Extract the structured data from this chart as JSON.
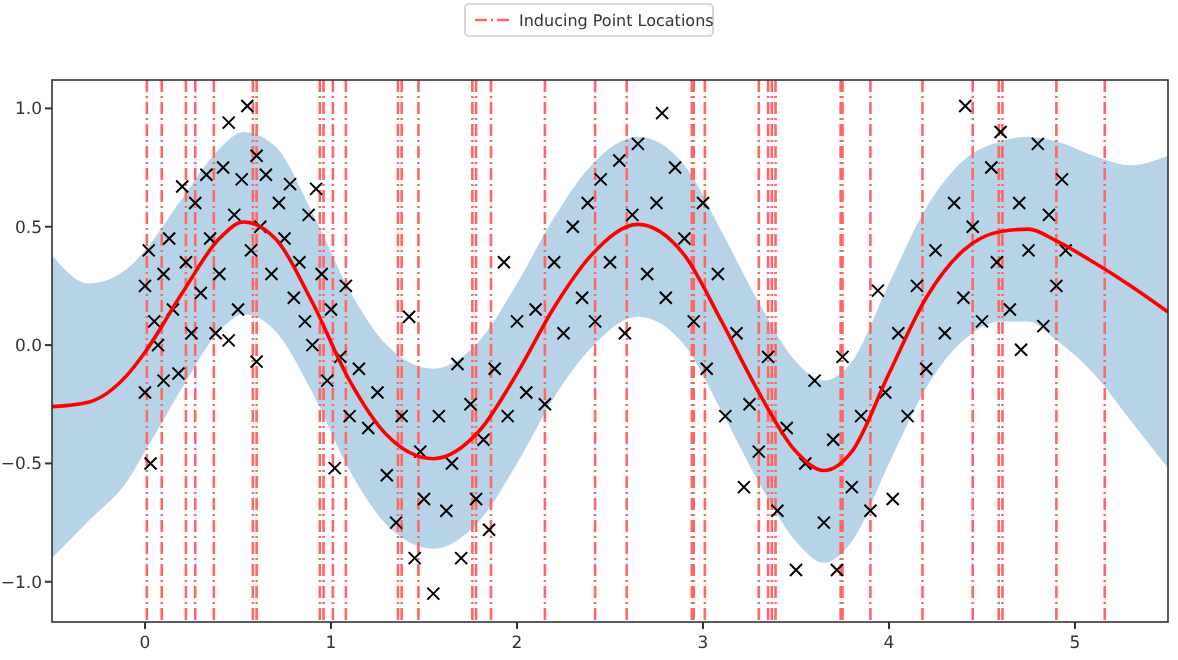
{
  "chart_data": {
    "type": "scatter",
    "xlim": [
      -0.5,
      5.5
    ],
    "ylim": [
      -1.17,
      1.12
    ],
    "xticks": [
      0,
      1,
      2,
      3,
      4,
      5
    ],
    "yticks": [
      {
        "value": -1,
        "label": "−1.0"
      },
      {
        "value": -0.5,
        "label": "−0.5"
      },
      {
        "value": 0,
        "label": "0.0"
      },
      {
        "value": 0.5,
        "label": "0.5"
      },
      {
        "value": 1,
        "label": "1.0"
      }
    ],
    "legend": "top",
    "series": [
      {
        "color": "#000000",
        "marker": "cross",
        "x": [
          0.0,
          0.0,
          0.02,
          0.03,
          0.05,
          0.07,
          0.1,
          0.1,
          0.13,
          0.15,
          0.18,
          0.2,
          0.22,
          0.25,
          0.27,
          0.3,
          0.33,
          0.35,
          0.38,
          0.4,
          0.42,
          0.45,
          0.45,
          0.48,
          0.5,
          0.52,
          0.55,
          0.57,
          0.6,
          0.6,
          0.62,
          0.65,
          0.68,
          0.72,
          0.75,
          0.78,
          0.8,
          0.83,
          0.86,
          0.88,
          0.9,
          0.92,
          0.95,
          0.98,
          1.0,
          1.02,
          1.05,
          1.08,
          1.1,
          1.15,
          1.2,
          1.25,
          1.3,
          1.35,
          1.38,
          1.42,
          1.45,
          1.48,
          1.5,
          1.55,
          1.58,
          1.62,
          1.65,
          1.68,
          1.7,
          1.75,
          1.78,
          1.82,
          1.85,
          1.88,
          1.93,
          1.95,
          2.0,
          2.05,
          2.1,
          2.15,
          2.2,
          2.25,
          2.3,
          2.35,
          2.38,
          2.42,
          2.45,
          2.5,
          2.55,
          2.58,
          2.62,
          2.65,
          2.7,
          2.75,
          2.78,
          2.8,
          2.85,
          2.9,
          2.95,
          3.0,
          3.02,
          3.08,
          3.12,
          3.18,
          3.22,
          3.25,
          3.3,
          3.35,
          3.4,
          3.45,
          3.5,
          3.55,
          3.6,
          3.65,
          3.7,
          3.72,
          3.75,
          3.8,
          3.85,
          3.9,
          3.94,
          3.98,
          4.02,
          4.05,
          4.1,
          4.15,
          4.2,
          4.25,
          4.3,
          4.35,
          4.4,
          4.41,
          4.45,
          4.5,
          4.55,
          4.58,
          4.6,
          4.65,
          4.7,
          4.71,
          4.75,
          4.8,
          4.83,
          4.86,
          4.9,
          4.93,
          4.95
        ],
        "values": [
          0.25,
          -0.2,
          0.4,
          -0.5,
          0.1,
          0.0,
          0.3,
          -0.15,
          0.45,
          0.15,
          -0.12,
          0.67,
          0.35,
          0.05,
          0.6,
          0.22,
          0.72,
          0.45,
          0.05,
          0.3,
          0.75,
          0.94,
          0.02,
          0.55,
          0.15,
          0.7,
          1.01,
          0.4,
          0.8,
          -0.07,
          0.5,
          0.72,
          0.3,
          0.6,
          0.45,
          0.68,
          0.2,
          0.35,
          0.1,
          0.55,
          0.0,
          0.66,
          0.3,
          -0.15,
          0.15,
          -0.52,
          -0.05,
          0.25,
          -0.3,
          -0.1,
          -0.35,
          -0.2,
          -0.55,
          -0.75,
          -0.3,
          0.12,
          -0.9,
          -0.45,
          -0.65,
          -1.05,
          -0.3,
          -0.7,
          -0.5,
          -0.08,
          -0.9,
          -0.25,
          -0.65,
          -0.4,
          -0.78,
          -0.1,
          0.35,
          -0.3,
          0.1,
          -0.2,
          0.15,
          -0.25,
          0.35,
          0.05,
          0.5,
          0.2,
          0.6,
          0.1,
          0.7,
          0.35,
          0.78,
          0.05,
          0.55,
          0.85,
          0.3,
          0.6,
          0.98,
          0.2,
          0.75,
          0.45,
          0.1,
          0.6,
          -0.1,
          0.3,
          -0.3,
          0.05,
          -0.6,
          -0.25,
          -0.45,
          -0.05,
          -0.7,
          -0.35,
          -0.95,
          -0.5,
          -0.15,
          -0.75,
          -0.4,
          -0.95,
          -0.05,
          -0.6,
          -0.3,
          -0.7,
          0.23,
          -0.2,
          -0.65,
          0.05,
          -0.3,
          0.25,
          -0.1,
          0.4,
          0.05,
          0.6,
          0.2,
          1.01,
          0.5,
          0.1,
          0.75,
          0.35,
          0.9,
          0.15,
          0.6,
          -0.02,
          0.4,
          0.85,
          0.08,
          0.55,
          0.25,
          0.7,
          0.4
        ]
      },
      {
        "type": "line",
        "color": "#ff0000",
        "marker": "none",
        "line_style": "solid",
        "x": [
          -0.5,
          -0.3,
          -0.1,
          0,
          0.2,
          0.4,
          0.53,
          0.7,
          0.9,
          1.1,
          1.3,
          1.55,
          1.8,
          2.0,
          2.2,
          2.4,
          2.65,
          2.9,
          3.1,
          3.3,
          3.5,
          3.65,
          3.8,
          4.0,
          4.2,
          4.4,
          4.6,
          4.75,
          4.9,
          5.1,
          5.3,
          5.5
        ],
        "values": [
          -0.26,
          -0.24,
          -0.13,
          -0.03,
          0.22,
          0.45,
          0.52,
          0.45,
          0.18,
          -0.15,
          -0.38,
          -0.48,
          -0.36,
          -0.12,
          0.16,
          0.38,
          0.51,
          0.38,
          0.1,
          -0.2,
          -0.45,
          -0.53,
          -0.45,
          -0.12,
          0.2,
          0.4,
          0.48,
          0.49,
          0.44,
          0.35,
          0.25,
          0.14
        ],
        "upper": [
          0.38,
          0.26,
          0.32,
          0.4,
          0.62,
          0.83,
          0.9,
          0.84,
          0.56,
          0.23,
          0,
          -0.1,
          0.02,
          0.26,
          0.54,
          0.76,
          0.88,
          0.76,
          0.48,
          0.18,
          -0.07,
          -0.15,
          -0.07,
          0.26,
          0.58,
          0.78,
          0.86,
          0.88,
          0.86,
          0.8,
          0.76,
          0.8
        ],
        "lower": [
          -0.9,
          -0.74,
          -0.58,
          -0.45,
          -0.18,
          0.06,
          0.13,
          0.06,
          -0.2,
          -0.53,
          -0.76,
          -0.86,
          -0.74,
          -0.5,
          -0.22,
          -0.01,
          0.12,
          0.0,
          -0.28,
          -0.58,
          -0.83,
          -0.92,
          -0.83,
          -0.5,
          -0.18,
          0.02,
          0.1,
          0.1,
          0.02,
          -0.12,
          -0.32,
          -0.52
        ]
      }
    ],
    "ref_lines": [
      {
        "axis": "x",
        "value": 0.01,
        "label": "Inducing Point Locations",
        "color": "#ff6666",
        "line_style": "dashed"
      },
      {
        "axis": "x",
        "value": 0.09,
        "color": "#ff6666",
        "line_style": "dashed"
      },
      {
        "axis": "x",
        "value": 0.22,
        "color": "#ff6666",
        "line_style": "dashed"
      },
      {
        "axis": "x",
        "value": 0.27,
        "color": "#ff6666",
        "line_style": "dashed"
      },
      {
        "axis": "x",
        "value": 0.37,
        "color": "#ff6666",
        "line_style": "dashed"
      },
      {
        "axis": "x",
        "value": 0.58,
        "color": "#ff6666",
        "line_style": "dashed"
      },
      {
        "axis": "x",
        "value": 0.6,
        "color": "#ff6666",
        "line_style": "dashed"
      },
      {
        "axis": "x",
        "value": 0.94,
        "color": "#ff6666",
        "line_style": "dashed"
      },
      {
        "axis": "x",
        "value": 0.96,
        "color": "#ff6666",
        "line_style": "dashed"
      },
      {
        "axis": "x",
        "value": 1.01,
        "color": "#ff6666",
        "line_style": "dashed"
      },
      {
        "axis": "x",
        "value": 1.08,
        "color": "#ff6666",
        "line_style": "dashed"
      },
      {
        "axis": "x",
        "value": 1.36,
        "color": "#ff6666",
        "line_style": "dashed"
      },
      {
        "axis": "x",
        "value": 1.38,
        "color": "#ff6666",
        "line_style": "dashed"
      },
      {
        "axis": "x",
        "value": 1.47,
        "color": "#ff6666",
        "line_style": "dashed"
      },
      {
        "axis": "x",
        "value": 1.76,
        "color": "#ff6666",
        "line_style": "dashed"
      },
      {
        "axis": "x",
        "value": 1.78,
        "color": "#ff6666",
        "line_style": "dashed"
      },
      {
        "axis": "x",
        "value": 1.86,
        "color": "#ff6666",
        "line_style": "dashed"
      },
      {
        "axis": "x",
        "value": 2.15,
        "color": "#ff6666",
        "line_style": "dashed"
      },
      {
        "axis": "x",
        "value": 2.42,
        "color": "#ff6666",
        "line_style": "dashed"
      },
      {
        "axis": "x",
        "value": 2.59,
        "color": "#ff6666",
        "line_style": "dashed"
      },
      {
        "axis": "x",
        "value": 2.94,
        "color": "#ff6666",
        "line_style": "dashed"
      },
      {
        "axis": "x",
        "value": 2.95,
        "color": "#ff6666",
        "line_style": "dashed"
      },
      {
        "axis": "x",
        "value": 3.01,
        "color": "#ff6666",
        "line_style": "dashed"
      },
      {
        "axis": "x",
        "value": 3.3,
        "color": "#ff6666",
        "line_style": "dashed"
      },
      {
        "axis": "x",
        "value": 3.35,
        "color": "#ff6666",
        "line_style": "dashed"
      },
      {
        "axis": "x",
        "value": 3.37,
        "color": "#ff6666",
        "line_style": "dashed"
      },
      {
        "axis": "x",
        "value": 3.39,
        "color": "#ff6666",
        "line_style": "dashed"
      },
      {
        "axis": "x",
        "value": 3.74,
        "color": "#ff6666",
        "line_style": "dashed"
      },
      {
        "axis": "x",
        "value": 3.75,
        "color": "#ff6666",
        "line_style": "dashed"
      },
      {
        "axis": "x",
        "value": 3.9,
        "color": "#ff6666",
        "line_style": "dashed"
      },
      {
        "axis": "x",
        "value": 4.18,
        "color": "#ff6666",
        "line_style": "dashed"
      },
      {
        "axis": "x",
        "value": 4.45,
        "color": "#ff6666",
        "line_style": "dashed"
      },
      {
        "axis": "x",
        "value": 4.59,
        "color": "#ff6666",
        "line_style": "dashed"
      },
      {
        "axis": "x",
        "value": 4.61,
        "color": "#ff6666",
        "line_style": "dashed"
      },
      {
        "axis": "x",
        "value": 4.9,
        "color": "#ff6666",
        "line_style": "dashed"
      },
      {
        "axis": "x",
        "value": 5.16,
        "color": "#ff6666",
        "line_style": "dashed"
      }
    ]
  }
}
